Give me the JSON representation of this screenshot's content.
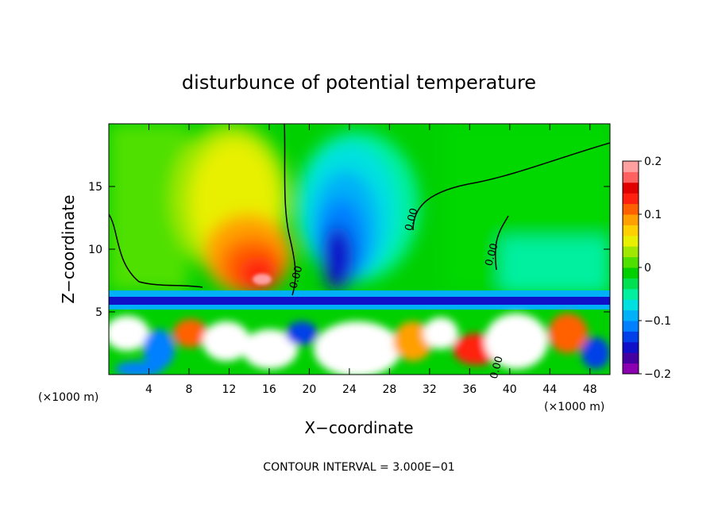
{
  "chart_data": {
    "type": "heatmap",
    "title": "disturbunce of potential temperature",
    "xlabel": "X−coordinate",
    "ylabel": "Z−coordinate",
    "x_unit_left": "(×1000 m)",
    "x_unit_right": "(×1000 m)",
    "xlim": [
      0,
      50
    ],
    "ylim": [
      0,
      20
    ],
    "x_ticks": [
      4,
      8,
      12,
      16,
      20,
      24,
      28,
      32,
      36,
      40,
      44,
      48
    ],
    "x_tick_labels": [
      "4",
      "8",
      "12",
      "16",
      "20",
      "24",
      "28",
      "32",
      "36",
      "40",
      "44",
      "48"
    ],
    "y_ticks": [
      5,
      10,
      15
    ],
    "y_tick_labels": [
      "5",
      "10",
      "15"
    ],
    "colorbar": {
      "range": [
        -0.2,
        0.2
      ],
      "tick_values": [
        0.2,
        0.1,
        0,
        -0.1,
        -0.2
      ],
      "tick_labels": [
        "0.2",
        "0.1",
        "0",
        "−0.1",
        "−0.2"
      ],
      "colors": [
        "#8B00B0",
        "#4400A0",
        "#1010C8",
        "#0040E8",
        "#0080FF",
        "#00B0F8",
        "#00E0E0",
        "#00F0A0",
        "#00E050",
        "#00D000",
        "#50E000",
        "#A0E800",
        "#E8F000",
        "#FFD000",
        "#FFA000",
        "#FF6000",
        "#FF2010",
        "#E00000",
        "#FF6060",
        "#FFA0A0"
      ]
    },
    "contour_labels": [
      {
        "text": "0.00",
        "x": 19.0,
        "y": 7.7
      },
      {
        "text": "0.00",
        "x": 30.5,
        "y": 12.3
      },
      {
        "text": "0.00",
        "x": 38.5,
        "y": 9.5
      },
      {
        "text": "0.00",
        "x": 39.0,
        "y": 0.5
      }
    ],
    "features": [
      {
        "name": "warm-anomaly",
        "x": 15.5,
        "z": 7.5,
        "value": 0.18
      },
      {
        "name": "cool-anomaly",
        "x": 22.5,
        "z": 9.0,
        "value": -0.15
      },
      {
        "name": "cool-band",
        "z": 6.0,
        "value": -0.12
      }
    ],
    "grid": false
  },
  "footer": {
    "contour_interval": "CONTOUR INTERVAL = 3.000E−01"
  }
}
